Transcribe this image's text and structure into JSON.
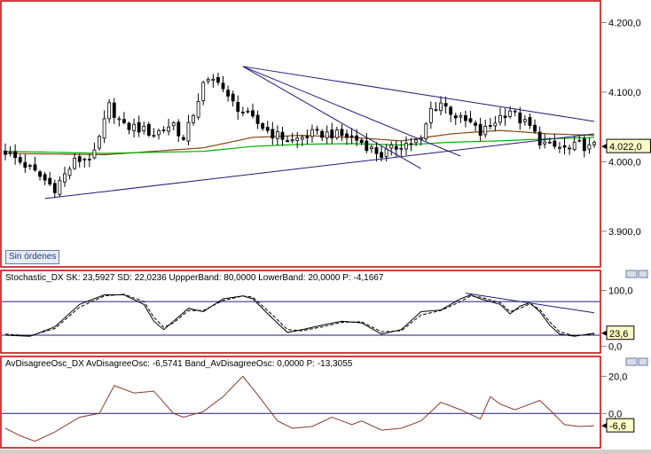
{
  "order_status": "Sin órdenes",
  "chart_data": [
    {
      "type": "candlestick",
      "panel": "price",
      "ylim": [
        3850,
        4230
      ],
      "y_ticks": [
        3900,
        4000,
        4100,
        4200
      ],
      "y_tick_labels": [
        "3.900,0",
        "4.000,0",
        "4.100,0",
        "4.200,0"
      ],
      "last_value": 4022,
      "last_value_label": "4.022,0",
      "bar_count": 120,
      "close_path": [
        [
          0,
          4015
        ],
        [
          5,
          3990
        ],
        [
          10,
          3962
        ],
        [
          14,
          4000
        ],
        [
          18,
          4010
        ],
        [
          21,
          4080
        ],
        [
          24,
          4050
        ],
        [
          26,
          4050
        ],
        [
          30,
          4040
        ],
        [
          34,
          4055
        ],
        [
          36,
          4030
        ],
        [
          38,
          4070
        ],
        [
          40,
          4110
        ],
        [
          43,
          4120
        ],
        [
          45,
          4090
        ],
        [
          50,
          4060
        ],
        [
          54,
          4040
        ],
        [
          58,
          4030
        ],
        [
          62,
          4040
        ],
        [
          66,
          4040
        ],
        [
          70,
          4035
        ],
        [
          72,
          4028
        ],
        [
          74,
          4018
        ],
        [
          76,
          4010
        ],
        [
          80,
          4025
        ],
        [
          84,
          4030
        ],
        [
          86,
          4075
        ],
        [
          88,
          4085
        ],
        [
          92,
          4060
        ],
        [
          94,
          4055
        ],
        [
          96,
          4040
        ],
        [
          100,
          4065
        ],
        [
          102,
          4075
        ],
        [
          104,
          4060
        ],
        [
          106,
          4050
        ],
        [
          108,
          4030
        ],
        [
          110,
          4022
        ],
        [
          112,
          4020
        ],
        [
          114,
          4018
        ],
        [
          116,
          4025
        ],
        [
          118,
          4020
        ],
        [
          119,
          4022
        ]
      ],
      "moving_averages": [
        {
          "color": "#8b4513",
          "values": [
            [
              0,
              4012
            ],
            [
              20,
              4010
            ],
            [
              40,
              4020
            ],
            [
              50,
              4035
            ],
            [
              60,
              4038
            ],
            [
              70,
              4035
            ],
            [
              80,
              4030
            ],
            [
              90,
              4040
            ],
            [
              100,
              4045
            ],
            [
              110,
              4040
            ],
            [
              119,
              4038
            ]
          ]
        },
        {
          "color": "#00b000",
          "values": [
            [
              0,
              4015
            ],
            [
              20,
              4012
            ],
            [
              40,
              4015
            ],
            [
              50,
              4022
            ],
            [
              60,
              4025
            ],
            [
              70,
              4026
            ],
            [
              80,
              4024
            ],
            [
              90,
              4028
            ],
            [
              100,
              4030
            ],
            [
              110,
              4033
            ],
            [
              119,
              4035
            ]
          ]
        }
      ],
      "trendlines": [
        {
          "from": [
            8,
            3947
          ],
          "to": [
            119,
            4040
          ]
        },
        {
          "from": [
            48,
            4137
          ],
          "to": [
            119,
            4058
          ]
        },
        {
          "from": [
            48,
            4137
          ],
          "to": [
            92,
            4008
          ]
        },
        {
          "from": [
            48,
            4137
          ],
          "to": [
            84,
            3990
          ]
        }
      ]
    },
    {
      "type": "line",
      "panel": "stochastic",
      "legend": "Stochastic_DX  SK: 23,5927  SD: 22,0236  UppperBand: 80,0000  LowerBand: 20,0000  P: -4,1667",
      "ylim": [
        -10,
        115
      ],
      "y_ticks": [
        0,
        100
      ],
      "y_tick_labels": [
        "0,0",
        "100,0"
      ],
      "bands": [
        80,
        20
      ],
      "last_value": 23.6,
      "last_value_label": "23,6",
      "series": [
        {
          "style": "solid",
          "values": [
            [
              0,
              20
            ],
            [
              5,
              18
            ],
            [
              10,
              35
            ],
            [
              15,
              75
            ],
            [
              20,
              92
            ],
            [
              24,
              92
            ],
            [
              28,
              75
            ],
            [
              30,
              45
            ],
            [
              32,
              30
            ],
            [
              34,
              45
            ],
            [
              37,
              68
            ],
            [
              40,
              62
            ],
            [
              44,
              85
            ],
            [
              48,
              90
            ],
            [
              50,
              85
            ],
            [
              54,
              50
            ],
            [
              57,
              25
            ],
            [
              60,
              30
            ],
            [
              64,
              38
            ],
            [
              68,
              45
            ],
            [
              72,
              42
            ],
            [
              76,
              22
            ],
            [
              80,
              30
            ],
            [
              84,
              62
            ],
            [
              88,
              65
            ],
            [
              92,
              85
            ],
            [
              94,
              92
            ],
            [
              96,
              85
            ],
            [
              100,
              75
            ],
            [
              102,
              58
            ],
            [
              104,
              72
            ],
            [
              106,
              78
            ],
            [
              108,
              62
            ],
            [
              110,
              38
            ],
            [
              112,
              22
            ],
            [
              115,
              18
            ],
            [
              119,
              23.6
            ]
          ]
        },
        {
          "style": "dashed",
          "values": [
            [
              0,
              22
            ],
            [
              5,
              19
            ],
            [
              10,
              32
            ],
            [
              15,
              70
            ],
            [
              20,
              90
            ],
            [
              24,
              93
            ],
            [
              28,
              80
            ],
            [
              30,
              52
            ],
            [
              32,
              34
            ],
            [
              34,
              42
            ],
            [
              37,
              64
            ],
            [
              40,
              64
            ],
            [
              44,
              82
            ],
            [
              48,
              90
            ],
            [
              50,
              88
            ],
            [
              54,
              56
            ],
            [
              57,
              30
            ],
            [
              60,
              28
            ],
            [
              64,
              35
            ],
            [
              68,
              43
            ],
            [
              72,
              44
            ],
            [
              76,
              26
            ],
            [
              80,
              28
            ],
            [
              84,
              56
            ],
            [
              88,
              64
            ],
            [
              92,
              80
            ],
            [
              94,
              90
            ],
            [
              96,
              88
            ],
            [
              100,
              78
            ],
            [
              102,
              62
            ],
            [
              104,
              68
            ],
            [
              106,
              76
            ],
            [
              108,
              66
            ],
            [
              110,
              44
            ],
            [
              112,
              26
            ],
            [
              115,
              19
            ],
            [
              119,
              22
            ]
          ]
        }
      ],
      "trendlines": [
        {
          "from": [
            93,
            95
          ],
          "to": [
            119,
            60
          ]
        }
      ]
    },
    {
      "type": "line",
      "panel": "avdisagree",
      "legend": "AvDisagreeOsc_DX  AvDisagreeOsc: -6,5741  Band_AvDisagreeOsc: 0,0000  P: -13,3055",
      "ylim": [
        -18,
        24
      ],
      "y_ticks": [
        0,
        20
      ],
      "y_tick_labels": [
        "0,0",
        "20,0"
      ],
      "band": 0,
      "last_value": -6.6,
      "last_value_label": "-6,6",
      "series": [
        {
          "style": "solid",
          "values": [
            [
              0,
              -8
            ],
            [
              3,
              -12
            ],
            [
              6,
              -15
            ],
            [
              10,
              -10
            ],
            [
              15,
              -2
            ],
            [
              19,
              0
            ],
            [
              22,
              15
            ],
            [
              26,
              11
            ],
            [
              30,
              12
            ],
            [
              34,
              0
            ],
            [
              36,
              -2
            ],
            [
              40,
              1
            ],
            [
              44,
              9
            ],
            [
              48,
              20
            ],
            [
              51,
              10
            ],
            [
              55,
              -4
            ],
            [
              58,
              -8
            ],
            [
              62,
              -7
            ],
            [
              66,
              -2
            ],
            [
              70,
              -6
            ],
            [
              72,
              -4
            ],
            [
              76,
              -9
            ],
            [
              80,
              -8
            ],
            [
              84,
              -4
            ],
            [
              88,
              6
            ],
            [
              92,
              2
            ],
            [
              96,
              -3
            ],
            [
              98,
              9
            ],
            [
              100,
              5
            ],
            [
              103,
              2
            ],
            [
              106,
              5
            ],
            [
              108,
              7
            ],
            [
              110,
              2
            ],
            [
              113,
              -6
            ],
            [
              116,
              -7
            ],
            [
              119,
              -6.6
            ]
          ]
        }
      ]
    }
  ]
}
